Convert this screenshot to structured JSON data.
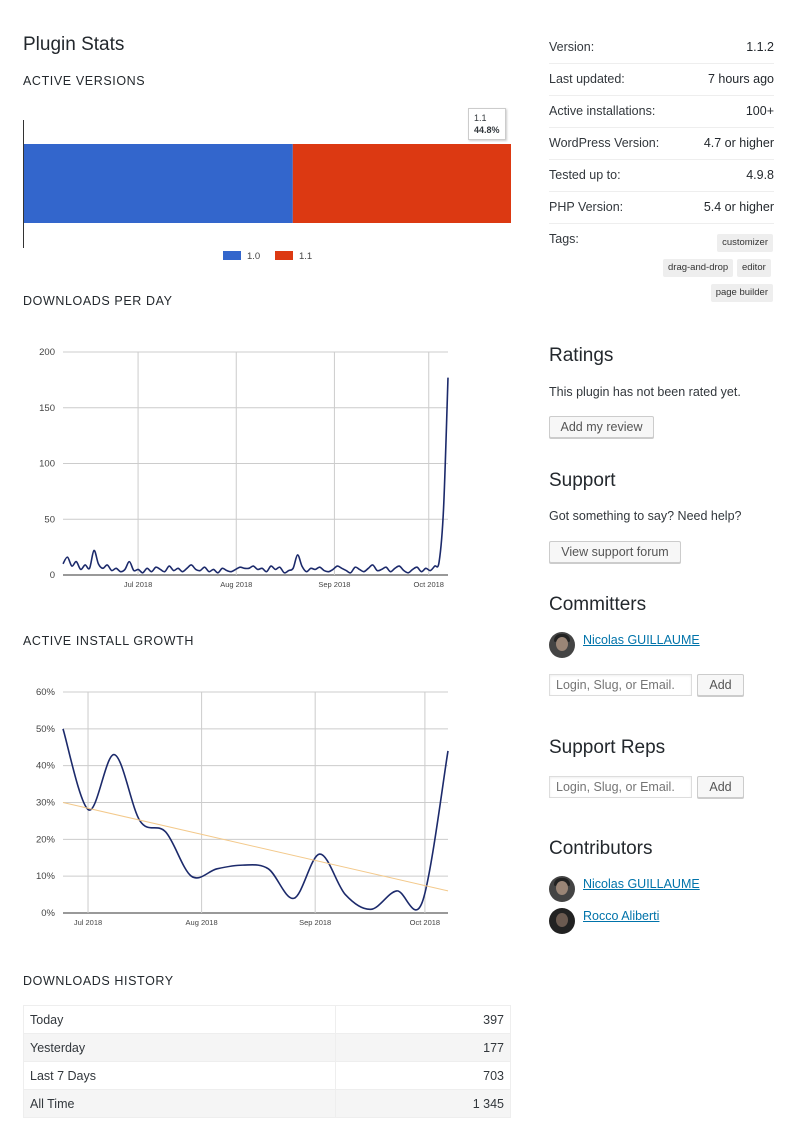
{
  "stats": {
    "title": "Plugin Stats",
    "active_versions": {
      "heading": "ACTIVE VERSIONS",
      "tooltip": {
        "label": "1.1",
        "value": "44.8%"
      },
      "legend": [
        {
          "label": "1.0",
          "color": "#3366cc"
        },
        {
          "label": "1.1",
          "color": "#dc3912"
        }
      ]
    },
    "downloads_per_day": {
      "heading": "DOWNLOADS PER DAY"
    },
    "active_install_growth": {
      "heading": "ACTIVE INSTALL GROWTH"
    },
    "downloads_history": {
      "heading": "DOWNLOADS HISTORY",
      "rows": [
        {
          "label": "Today",
          "value": "397"
        },
        {
          "label": "Yesterday",
          "value": "177"
        },
        {
          "label": "Last 7 Days",
          "value": "703"
        },
        {
          "label": "All Time",
          "value": "1 345"
        }
      ]
    }
  },
  "chart_data": [
    {
      "type": "bar",
      "title": "",
      "orientation": "horizontal-stacked",
      "series": [
        {
          "name": "1.0",
          "values": [
            55.2
          ]
        },
        {
          "name": "1.1",
          "values": [
            44.8
          ]
        }
      ],
      "colors": [
        "#3366cc",
        "#dc3912"
      ],
      "legend_position": "bottom"
    },
    {
      "type": "line",
      "title": "",
      "x_ticks": [
        "Jul 2018",
        "Aug 2018",
        "Sep 2018",
        "Oct 2018"
      ],
      "y_ticks": [
        "0",
        "50",
        "100",
        "150",
        "200"
      ],
      "ylim": [
        0,
        200
      ],
      "grid": true,
      "series": [
        {
          "values": [
            10,
            16,
            8,
            12,
            5,
            9,
            6,
            22,
            10,
            6,
            9,
            4,
            6,
            3,
            5,
            12,
            4,
            5,
            2,
            6,
            3,
            7,
            5,
            3,
            8,
            4,
            6,
            3,
            6,
            9,
            5,
            4,
            7,
            3,
            5,
            2,
            6,
            4,
            3,
            5,
            7,
            6,
            6,
            8,
            5,
            6,
            3,
            8,
            5,
            7,
            2,
            4,
            6,
            18,
            8,
            3,
            6,
            5,
            7,
            4,
            3,
            5,
            8,
            6,
            4,
            2,
            7,
            5,
            3,
            6,
            9,
            4,
            5,
            7,
            3,
            6,
            8,
            4,
            2,
            5,
            7,
            3,
            6,
            4,
            8,
            12,
            60,
            177
          ]
        }
      ]
    },
    {
      "type": "line",
      "title": "",
      "x_ticks": [
        "Jul 2018",
        "Aug 2018",
        "Sep 2018",
        "Oct 2018"
      ],
      "y_ticks": [
        "0%",
        "10%",
        "20%",
        "30%",
        "40%",
        "50%",
        "60%"
      ],
      "ylim": [
        0,
        60
      ],
      "grid": true,
      "series": [
        {
          "values": [
            50,
            28,
            43,
            25,
            22,
            10,
            12,
            13,
            12,
            4,
            16,
            5,
            1,
            6,
            3,
            44
          ],
          "color": "#1c2a6b"
        },
        {
          "values": [
            30,
            6
          ],
          "color": "#f3c98b",
          "kind": "trendline"
        }
      ]
    }
  ],
  "meta": {
    "rows": [
      {
        "label": "Version:",
        "value": "1.1.2"
      },
      {
        "label": "Last updated:",
        "value": "7 hours ago"
      },
      {
        "label": "Active installations:",
        "value": "100+"
      },
      {
        "label": "WordPress Version:",
        "value": "4.7 or higher"
      },
      {
        "label": "Tested up to:",
        "value": "4.9.8"
      },
      {
        "label": "PHP Version:",
        "value": "5.4 or higher"
      }
    ],
    "tags_label": "Tags:",
    "tags": [
      "customizer",
      "drag-and-drop",
      "editor",
      "page builder"
    ]
  },
  "ratings": {
    "title": "Ratings",
    "text": "This plugin has not been rated yet.",
    "button": "Add my review"
  },
  "support": {
    "title": "Support",
    "text": "Got something to say? Need help?",
    "button": "View support forum"
  },
  "committers": {
    "title": "Committers",
    "name": "Nicolas GUILLAUME",
    "placeholder": "Login, Slug, or Email.",
    "button": "Add"
  },
  "support_reps": {
    "title": "Support Reps",
    "placeholder": "Login, Slug, or Email.",
    "button": "Add"
  },
  "contributors": {
    "title": "Contributors",
    "names": [
      "Nicolas GUILLAUME",
      "Rocco Aliberti"
    ]
  }
}
